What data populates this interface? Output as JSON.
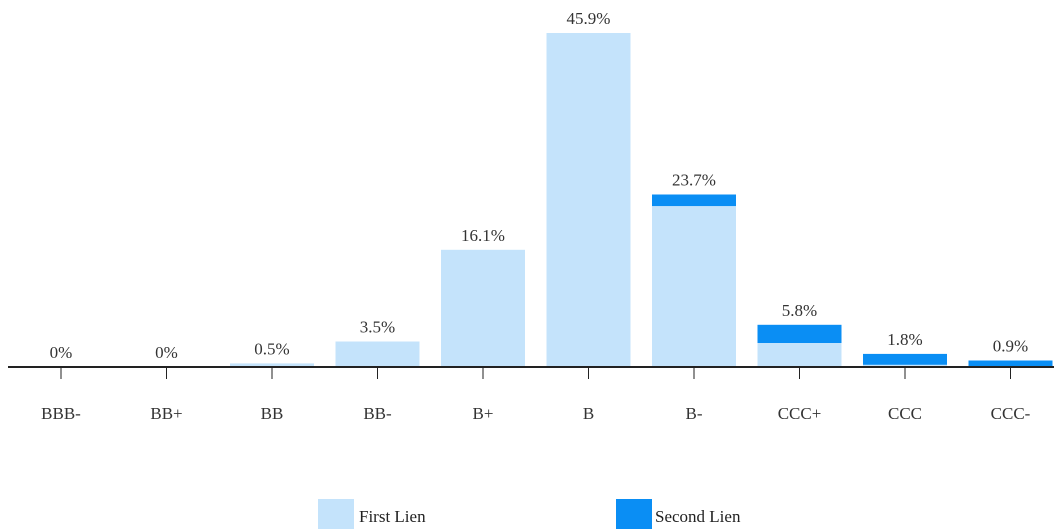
{
  "chart_data": {
    "type": "bar",
    "stacked": true,
    "categories": [
      "BBB-",
      "BB+",
      "BB",
      "BB-",
      "B+",
      "B",
      "B-",
      "CCC+",
      "CCC",
      "CCC-"
    ],
    "series": [
      {
        "name": "First Lien",
        "color": "#c4e3fb",
        "values": [
          0,
          0,
          0.5,
          3.5,
          16.1,
          45.9,
          22.1,
          3.3,
          0.3,
          0
        ]
      },
      {
        "name": "Second Lien",
        "color": "#0a8ef4",
        "values": [
          0,
          0,
          0,
          0,
          0,
          0,
          1.6,
          2.5,
          1.5,
          0.9
        ]
      }
    ],
    "totals_labels": [
      "0%",
      "0%",
      "0.5%",
      "3.5%",
      "16.1%",
      "45.9%",
      "23.7%",
      "5.8%",
      "1.8%",
      "0.9%"
    ],
    "ylim": [
      0,
      46.5
    ],
    "grid": false,
    "legend_position": "bottom"
  }
}
